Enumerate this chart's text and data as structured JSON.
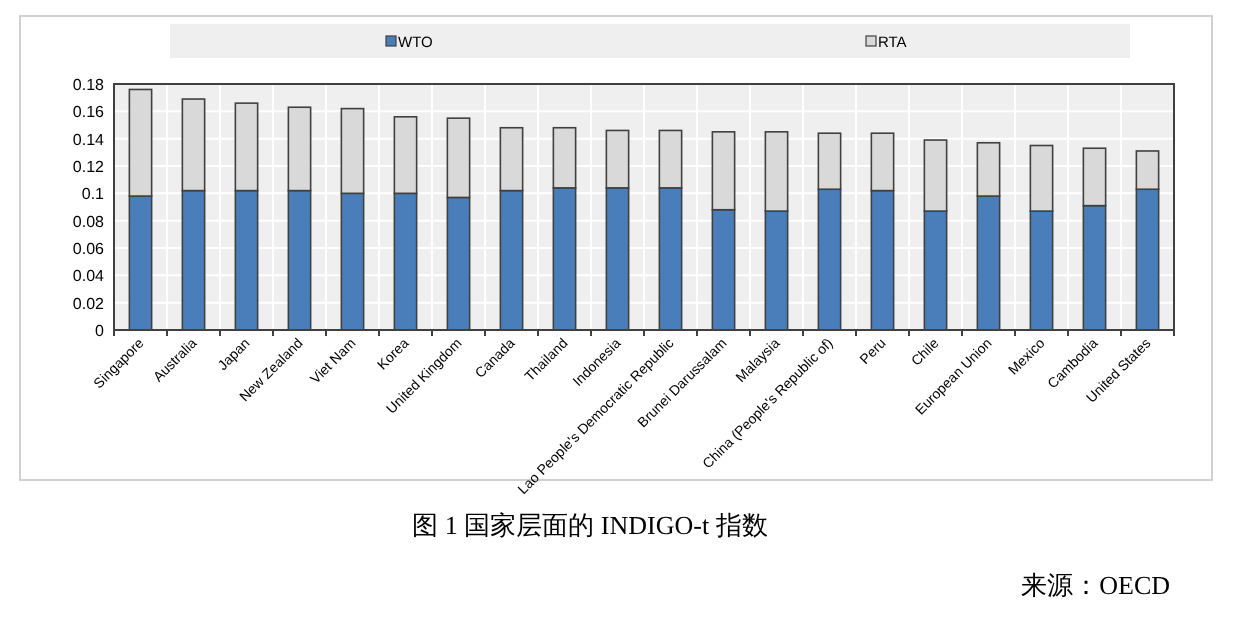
{
  "chart_data": {
    "type": "bar",
    "stacked": true,
    "title": "图 1 国家层面的 INDIGO-t 指数",
    "annotations": [
      "来源：OECD"
    ],
    "categories": [
      "Singapore",
      "Australia",
      "Japan",
      "New Zealand",
      "Viet Nam",
      "Korea",
      "United Kingdom",
      "Canada",
      "Thailand",
      "Indonesia",
      "Lao People's Democratic Republic",
      "Brunei Darussalam",
      "Malaysia",
      "China (People's Republic of)",
      "Peru",
      "Chile",
      "European Union",
      "Mexico",
      "Cambodia",
      "United States"
    ],
    "series": [
      {
        "name": "WTO",
        "color": "#4a7ebb",
        "values": [
          0.098,
          0.102,
          0.102,
          0.102,
          0.1,
          0.1,
          0.097,
          0.102,
          0.104,
          0.104,
          0.104,
          0.088,
          0.087,
          0.103,
          0.102,
          0.087,
          0.098,
          0.087,
          0.091,
          0.103
        ]
      },
      {
        "name": "RTA",
        "color": "#d9d9d9",
        "values": [
          0.078,
          0.067,
          0.064,
          0.061,
          0.062,
          0.056,
          0.058,
          0.046,
          0.044,
          0.042,
          0.042,
          0.057,
          0.058,
          0.041,
          0.042,
          0.052,
          0.039,
          0.048,
          0.042,
          0.028
        ]
      }
    ],
    "ylim": [
      0,
      0.18
    ],
    "yticks": [
      0,
      0.02,
      0.04,
      0.06,
      0.08,
      0.1,
      0.12,
      0.14,
      0.16,
      0.18
    ],
    "grid": true,
    "legend": "top"
  }
}
